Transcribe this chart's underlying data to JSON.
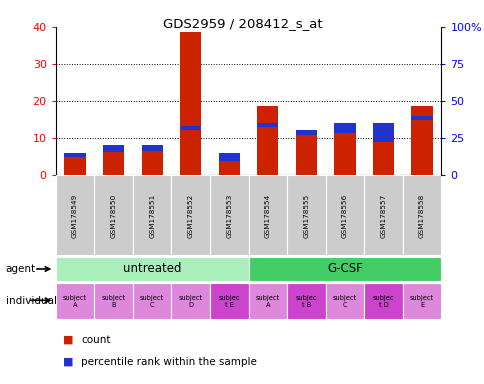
{
  "title": "GDS2959 / 208412_s_at",
  "samples": [
    "GSM178549",
    "GSM178550",
    "GSM178551",
    "GSM178552",
    "GSM178553",
    "GSM178554",
    "GSM178555",
    "GSM178556",
    "GSM178557",
    "GSM178558"
  ],
  "count_values": [
    5.0,
    6.2,
    6.3,
    38.5,
    3.8,
    18.5,
    11.8,
    11.2,
    8.8,
    18.5
  ],
  "percentile_values_pct": [
    15,
    20,
    20,
    33,
    15,
    35,
    30,
    35,
    35,
    40
  ],
  "count_color": "#cc2200",
  "percentile_color": "#2233cc",
  "ylim_left": [
    0,
    40
  ],
  "ylim_right": [
    0,
    100
  ],
  "yticks_left": [
    0,
    10,
    20,
    30,
    40
  ],
  "ytick_labels_left": [
    "0",
    "10",
    "20",
    "30",
    "40"
  ],
  "yticks_right": [
    0,
    25,
    50,
    75,
    100
  ],
  "ytick_labels_right": [
    "0",
    "25",
    "50",
    "75",
    "100%"
  ],
  "agent_groups": [
    {
      "label": "untreated",
      "start": 0,
      "end": 5,
      "color": "#aaeebb"
    },
    {
      "label": "G-CSF",
      "start": 5,
      "end": 10,
      "color": "#44cc66"
    }
  ],
  "individual_labels": [
    "subject\nA",
    "subject\nB",
    "subject\nC",
    "subject\nD",
    "subjec\nt E",
    "subject\nA",
    "subjec\nt B",
    "subject\nC",
    "subjec\nt D",
    "subject\nE"
  ],
  "individual_highlight": [
    4,
    6,
    8
  ],
  "individual_color_normal": "#dd88dd",
  "individual_color_highlight": "#cc44cc",
  "sample_bg_color": "#cccccc",
  "sample_alt_color": "#dddddd",
  "agent_label": "agent",
  "individual_label": "individual",
  "legend_count": "count",
  "legend_percentile": "percentile rank within the sample",
  "bar_width": 0.55
}
